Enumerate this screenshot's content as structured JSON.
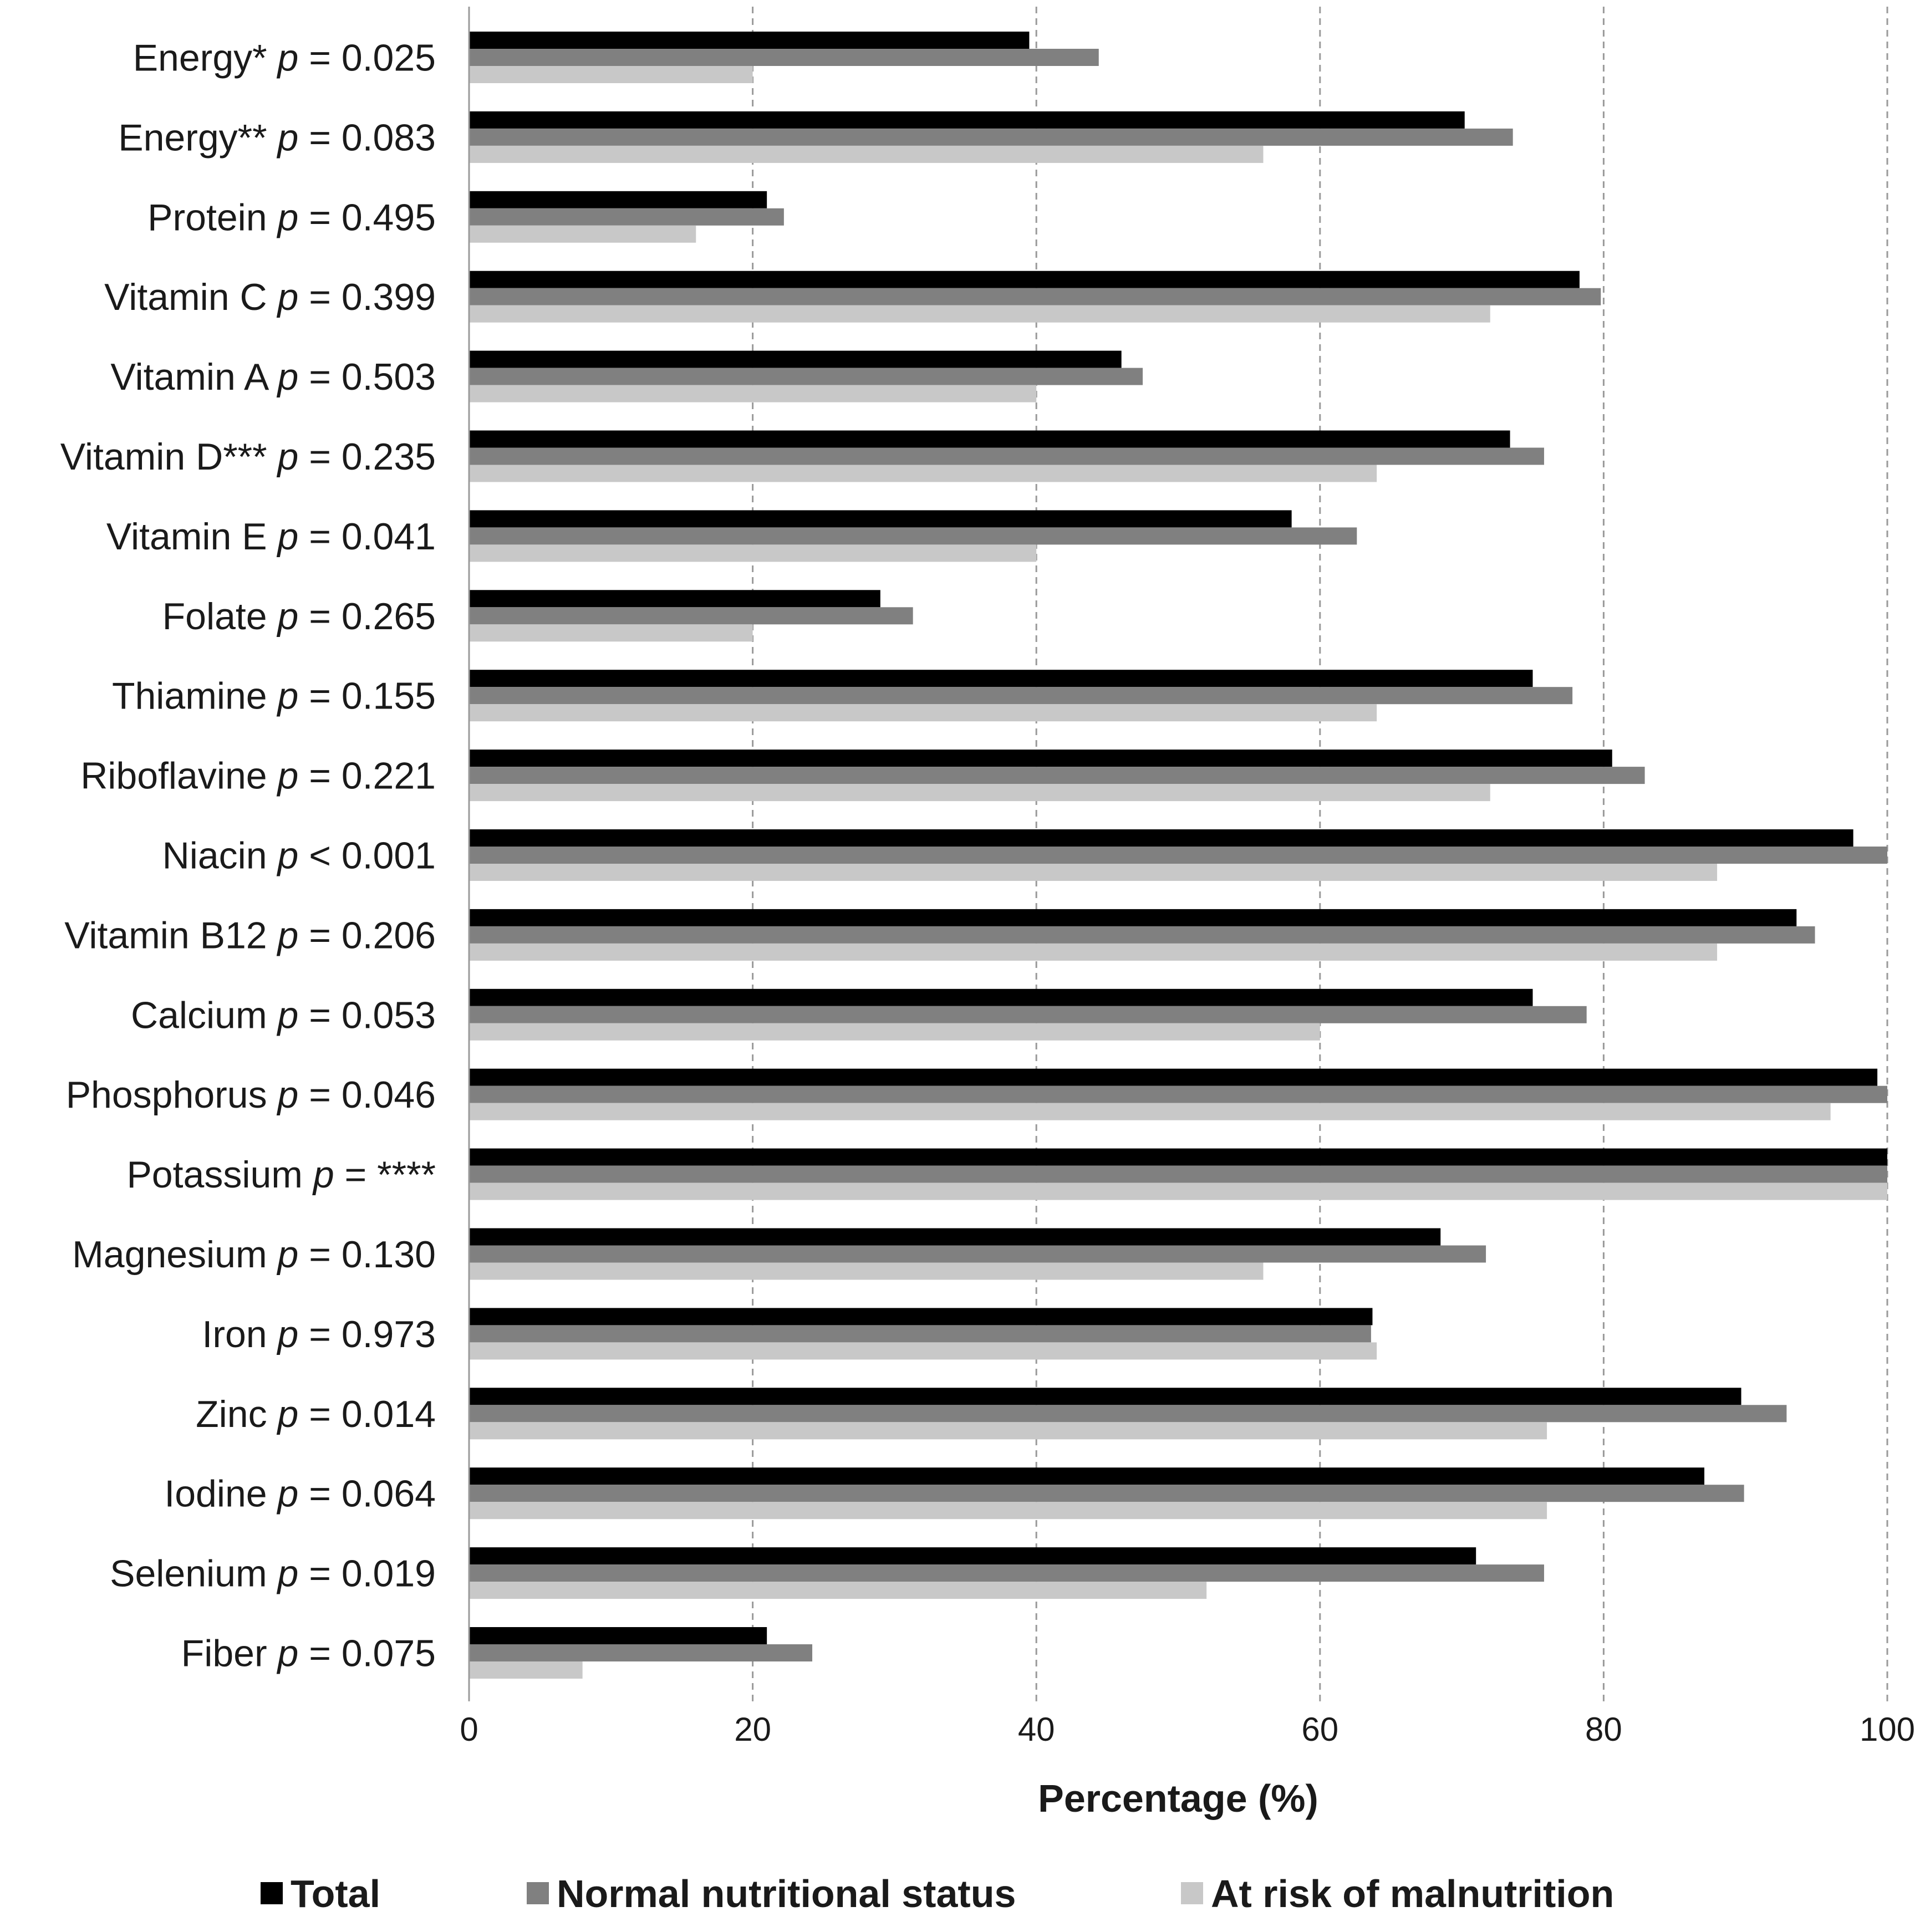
{
  "chart_data": {
    "type": "bar",
    "orientation": "horizontal",
    "title": "",
    "xlabel": "Percentage (%)",
    "ylabel": "",
    "xlim": [
      0,
      100
    ],
    "xticks": [
      0,
      20,
      40,
      60,
      80,
      100
    ],
    "grid": "vertical dashed",
    "legend_position": "bottom",
    "categories": [
      "Energy*",
      "Energy**",
      "Protein",
      "Vitamin C",
      "Vitamin A",
      "Vitamin D***",
      "Vitamin E",
      "Folate",
      "Thiamine",
      "Riboflavine",
      "Niacin",
      "Vitamin B12",
      "Calcium",
      "Phosphorus",
      "Potassium",
      "Magnesium",
      "Iron",
      "Zinc",
      "Iodine",
      "Selenium",
      "Fiber"
    ],
    "p_prefix": "p",
    "p_values": [
      "= 0.025",
      "= 0.083",
      "= 0.495",
      "= 0.399",
      "= 0.503",
      "= 0.235",
      "= 0.041",
      "= 0.265",
      "= 0.155",
      "= 0.221",
      "< 0.001",
      "= 0.206",
      "= 0.053",
      "= 0.046",
      "= ****",
      "= 0.130",
      "= 0.973",
      "= 0.014",
      "= 0.064",
      "= 0.019",
      "= 0.075"
    ],
    "series": [
      {
        "name": "Total",
        "color": "#000000",
        "values": [
          39.5,
          70.2,
          21.0,
          78.3,
          46.0,
          73.4,
          58.0,
          29.0,
          75.0,
          80.6,
          97.6,
          93.6,
          75.0,
          99.3,
          100,
          68.5,
          63.7,
          89.7,
          87.1,
          71.0,
          21.0
        ]
      },
      {
        "name": "Normal nutritional status",
        "color": "#808080",
        "values": [
          44.4,
          73.6,
          22.2,
          79.8,
          47.5,
          75.8,
          62.6,
          31.3,
          77.8,
          82.9,
          100,
          94.9,
          78.8,
          100,
          100,
          71.7,
          63.6,
          92.9,
          89.9,
          75.8,
          24.2
        ]
      },
      {
        "name": "At risk of malnutrition",
        "color": "#c8c8c8",
        "values": [
          20.0,
          56.0,
          16.0,
          72.0,
          40.0,
          64.0,
          40.0,
          20.0,
          64.0,
          72.0,
          88.0,
          88.0,
          60.0,
          96.0,
          100,
          56.0,
          64.0,
          76.0,
          76.0,
          52.0,
          8.0
        ]
      }
    ]
  }
}
